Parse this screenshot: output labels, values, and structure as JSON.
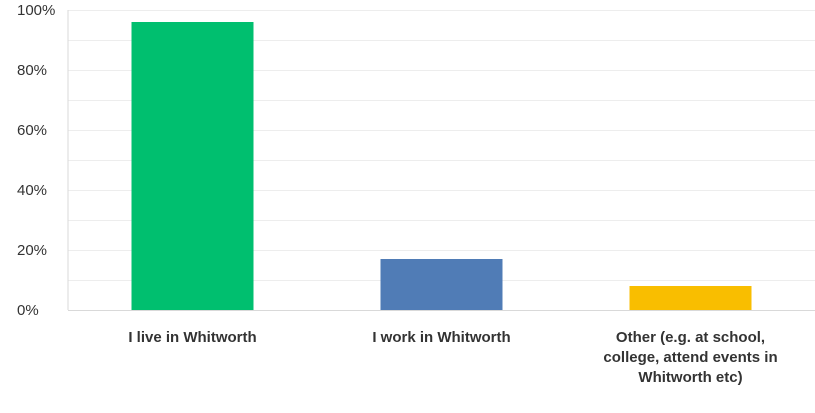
{
  "chart_data": {
    "type": "bar",
    "title": "",
    "xlabel": "",
    "ylabel": "",
    "categories": [
      "I live in Whitworth",
      "I work in Whitworth",
      "Other (e.g. at school, college, attend events in Whitworth etc)"
    ],
    "values": [
      96,
      17,
      8
    ],
    "unit": "%",
    "ylim": [
      0,
      100
    ],
    "yticks": [
      "0%",
      "20%",
      "40%",
      "60%",
      "80%",
      "100%"
    ],
    "colors": [
      "#00bf6f",
      "#507cb6",
      "#f9be00"
    ],
    "grid": true,
    "grid_color": "#ededed",
    "axis_color": "#d9d9d9",
    "legend": "none"
  }
}
